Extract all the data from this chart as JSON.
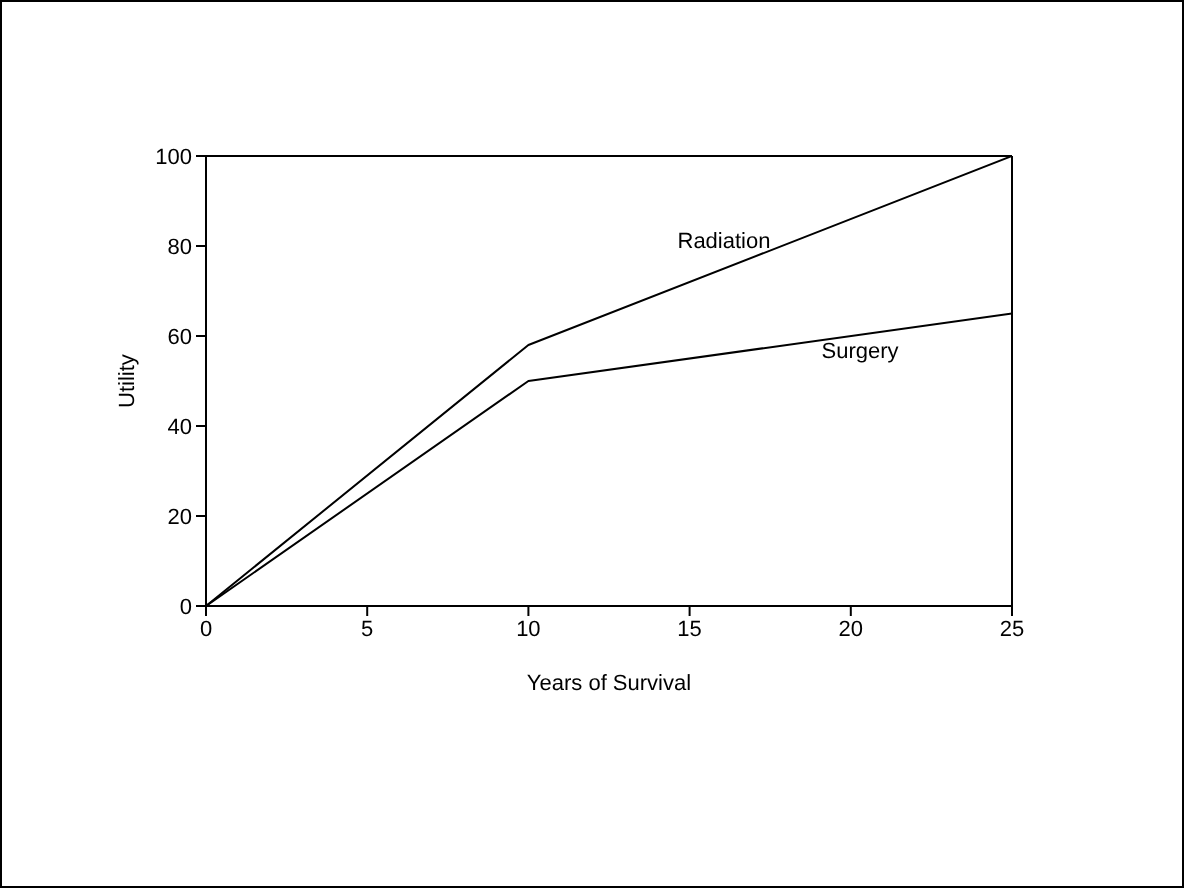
{
  "chart_data": {
    "type": "line",
    "xlabel": "Years of Survival",
    "ylabel": "Utility",
    "x": [
      0,
      10,
      25
    ],
    "series": [
      {
        "name": "Radiation",
        "color": "#000000",
        "values": [
          0,
          58,
          100
        ]
      },
      {
        "name": "Surgery",
        "color": "#000000",
        "values": [
          0,
          50,
          65
        ]
      }
    ],
    "xlim": [
      0,
      25
    ],
    "xticks": [
      0,
      5,
      10,
      15,
      20,
      25
    ],
    "ylim": [
      0,
      100
    ],
    "yticks": [
      0,
      20,
      40,
      60,
      80,
      100
    ],
    "grid": false,
    "legend": false,
    "marker": "none",
    "line_style": "solid"
  }
}
